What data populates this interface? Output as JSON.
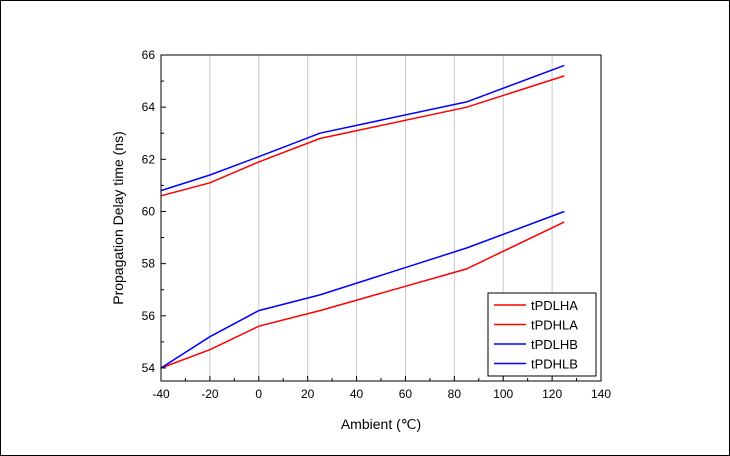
{
  "chart_data": {
    "type": "line",
    "title": "",
    "xlabel": "Ambient (℃)",
    "ylabel": "Propagation Delay time (ns)",
    "xlim": [
      -40,
      140
    ],
    "ylim": [
      53.5,
      66
    ],
    "xticks": [
      -40,
      -20,
      0,
      20,
      40,
      60,
      80,
      100,
      120,
      140
    ],
    "xtick_labels": [
      "-40",
      "-20",
      "0",
      "20",
      "40",
      "60",
      "80",
      "100",
      "120",
      "140"
    ],
    "yticks": [
      54,
      56,
      58,
      60,
      62,
      64,
      66
    ],
    "ytick_labels": [
      "54",
      "56",
      "58",
      "60",
      "62",
      "64",
      "66"
    ],
    "grid": "vertical",
    "legend_position": "bottom-right",
    "x": [
      -40,
      -20,
      0,
      25,
      85,
      125
    ],
    "series": [
      {
        "name": "tPDLHA",
        "color": "#ff0000",
        "values": [
          60.6,
          61.1,
          61.9,
          62.8,
          64.0,
          65.2
        ]
      },
      {
        "name": "tPDHLA",
        "color": "#ff0000",
        "values": [
          54.0,
          54.7,
          55.6,
          56.2,
          57.8,
          59.6
        ]
      },
      {
        "name": "tPDLHB",
        "color": "#0000ff",
        "values": [
          60.8,
          61.4,
          62.1,
          63.0,
          64.2,
          65.6
        ]
      },
      {
        "name": "tPDHLB",
        "color": "#0000ff",
        "values": [
          54.0,
          55.2,
          56.2,
          56.8,
          58.6,
          60.0
        ]
      }
    ]
  }
}
